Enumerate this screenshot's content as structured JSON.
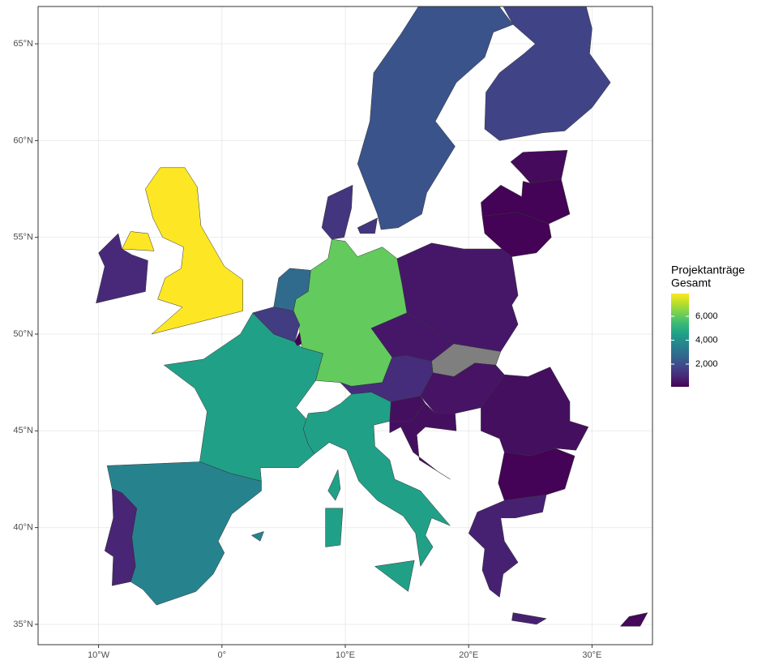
{
  "chart_data": {
    "type": "choropleth",
    "xlim": [
      -14.9,
      34.9
    ],
    "ylim": [
      33.95,
      66.93
    ],
    "xticks": [
      {
        "value": -10,
        "label": "10°W"
      },
      {
        "value": 0,
        "label": "0°"
      },
      {
        "value": 10,
        "label": "10°E"
      },
      {
        "value": 20,
        "label": "20°E"
      },
      {
        "value": 30,
        "label": "30°E"
      }
    ],
    "yticks": [
      {
        "value": 35,
        "label": "35°N"
      },
      {
        "value": 40,
        "label": "40°N"
      },
      {
        "value": 45,
        "label": "45°N"
      },
      {
        "value": 50,
        "label": "50°N"
      },
      {
        "value": 55,
        "label": "55°N"
      },
      {
        "value": 60,
        "label": "60°N"
      },
      {
        "value": 65,
        "label": "65°N"
      }
    ],
    "grid": true,
    "legend": {
      "title": [
        "Projektanträge",
        "Gesamt"
      ],
      "ticks": [
        {
          "value": 2000,
          "label": "2,000"
        },
        {
          "value": 4000,
          "label": "4,000"
        },
        {
          "value": 6000,
          "label": "6,000"
        }
      ]
    },
    "color_lim": [
      100,
      7900
    ],
    "colormap": [
      "#440154",
      "#482878",
      "#3e4989",
      "#31688e",
      "#26828e",
      "#1f9e89",
      "#35b779",
      "#6ece58",
      "#b5de2b",
      "#fde725"
    ],
    "na_color": "#7f7f7f",
    "regions": {
      "values": [
        7900,
        1000,
        4500,
        3600,
        900,
        1500,
        100,
        2800,
        6000,
        1300,
        2100,
        1700,
        300,
        150,
        150,
        600,
        600,
        null,
        1100,
        500,
        400,
        400,
        400,
        150,
        800,
        4500,
        250
      ]
    }
  }
}
